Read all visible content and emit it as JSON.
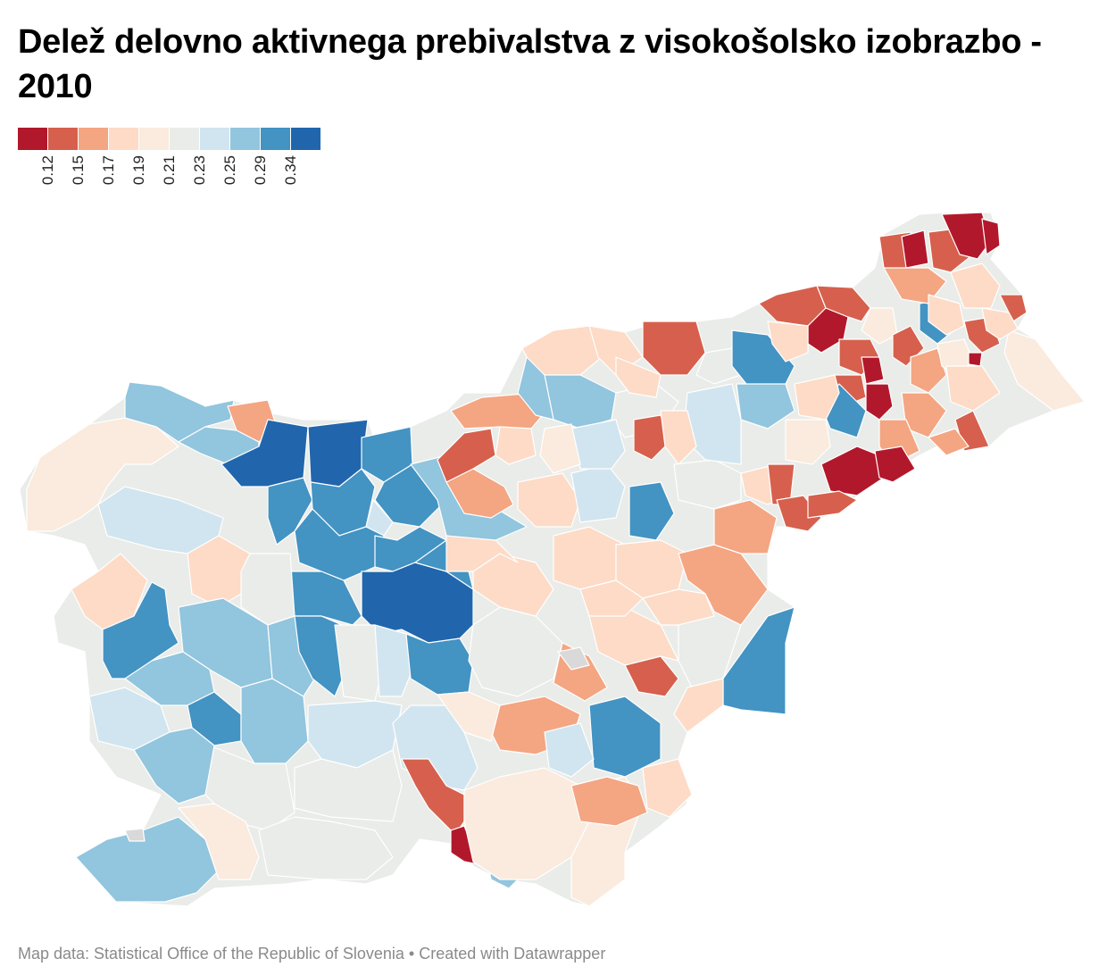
{
  "title": "Delež delovno aktivnega prebivalstva z visokošolsko izobrazbo - 2010",
  "legend": {
    "colors": [
      "#b2182b",
      "#d6604d",
      "#f4a582",
      "#fddbc7",
      "#faebde",
      "#e9ece8",
      "#d1e5f0",
      "#92c5de",
      "#4393c3",
      "#2166ac"
    ],
    "ticks": [
      "0.12",
      "0.15",
      "0.17",
      "0.19",
      "0.21",
      "0.23",
      "0.25",
      "0.29",
      "0.34"
    ]
  },
  "no_data_color": "#d9d9d9",
  "source": "Map data: Statistical Office of the Republic of Slovenia • Created with Datawrapper"
}
